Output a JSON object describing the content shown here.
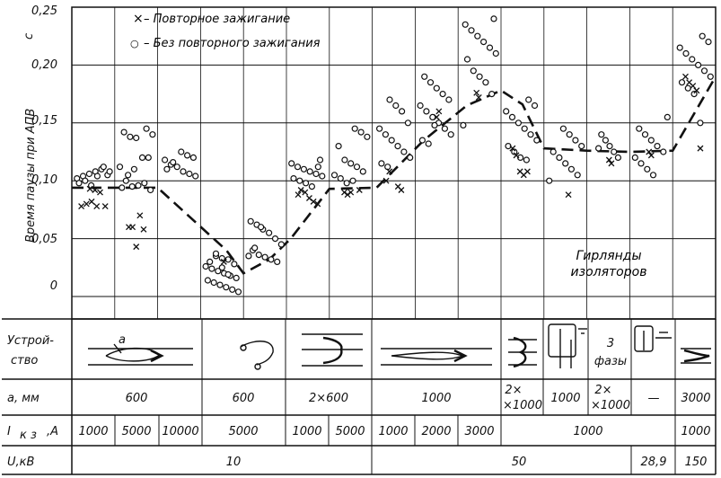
{
  "chart_data": {
    "type": "scatter",
    "ylabel": "Время паузы при АПВ",
    "yunit": "с",
    "ylim": [
      0,
      0.25
    ],
    "yticks": [
      "0",
      "0,05",
      "0,10",
      "0,15",
      "0,20",
      "0,25"
    ],
    "grid": true,
    "legend": [
      {
        "symbol": "×",
        "label": "– Повторное зажигание"
      },
      {
        "symbol": "○",
        "label": "– Без повторного зажигания"
      }
    ],
    "annotation": [
      "Гирлянды",
      "изоляторов"
    ],
    "columns": [
      {
        "id": 1,
        "relight": [
          0.093,
          0.092,
          0.09,
          0.078,
          0.078,
          0.08,
          0.082,
          0.078
        ],
        "no_relight": [
          0.102,
          0.104,
          0.106,
          0.108,
          0.11,
          0.105,
          0.098,
          0.1,
          0.096,
          0.104,
          0.112,
          0.108
        ]
      },
      {
        "id": 2,
        "relight": [
          0.06,
          0.06,
          0.043,
          0.07,
          0.058
        ],
        "no_relight": [
          0.145,
          0.14,
          0.142,
          0.138,
          0.137,
          0.12,
          0.12,
          0.112,
          0.1,
          0.095,
          0.096,
          0.098,
          0.092,
          0.094,
          0.105,
          0.11
        ]
      },
      {
        "id": 3,
        "relight": [],
        "no_relight": [
          0.125,
          0.122,
          0.12,
          0.118,
          0.114,
          0.112,
          0.108,
          0.106,
          0.104,
          0.11,
          0.116
        ]
      },
      {
        "id": 4,
        "relight": [
          0.03
        ],
        "no_relight": [
          0.035,
          0.033,
          0.032,
          0.028,
          0.026,
          0.024,
          0.022,
          0.02,
          0.018,
          0.016,
          0.014,
          0.012,
          0.01,
          0.008,
          0.006,
          0.004,
          0.03,
          0.037,
          0.025,
          0.019
        ]
      },
      {
        "id": 5,
        "relight": [],
        "no_relight": [
          0.065,
          0.062,
          0.058,
          0.055,
          0.05,
          0.045,
          0.04,
          0.036,
          0.034,
          0.032,
          0.03,
          0.035,
          0.042,
          0.06
        ]
      },
      {
        "id": 6,
        "relight": [
          0.092,
          0.09,
          0.085,
          0.082,
          0.08,
          0.088
        ],
        "no_relight": [
          0.118,
          0.115,
          0.112,
          0.11,
          0.108,
          0.106,
          0.104,
          0.102,
          0.1,
          0.098,
          0.095,
          0.112
        ]
      },
      {
        "id": 7,
        "relight": [
          0.092,
          0.09,
          0.088,
          0.09
        ],
        "no_relight": [
          0.145,
          0.142,
          0.138,
          0.13,
          0.118,
          0.115,
          0.112,
          0.108,
          0.105,
          0.102,
          0.098,
          0.1
        ]
      },
      {
        "id": 8,
        "relight": [
          0.095,
          0.092,
          0.1,
          0.108
        ],
        "no_relight": [
          0.17,
          0.165,
          0.16,
          0.15,
          0.145,
          0.14,
          0.135,
          0.13,
          0.125,
          0.12,
          0.115,
          0.112
        ]
      },
      {
        "id": 9,
        "relight": [
          0.155,
          0.16
        ],
        "no_relight": [
          0.19,
          0.185,
          0.18,
          0.175,
          0.17,
          0.165,
          0.16,
          0.155,
          0.15,
          0.145,
          0.14,
          0.135,
          0.132,
          0.148
        ]
      },
      {
        "id": 10,
        "relight": [
          0.176,
          0.172
        ],
        "no_relight": [
          0.24,
          0.235,
          0.23,
          0.225,
          0.22,
          0.215,
          0.21,
          0.205,
          0.195,
          0.19,
          0.185,
          0.175,
          0.148
        ]
      },
      {
        "id": 11,
        "relight": [
          0.128,
          0.122,
          0.108,
          0.105,
          0.108
        ],
        "no_relight": [
          0.17,
          0.165,
          0.16,
          0.155,
          0.15,
          0.145,
          0.14,
          0.135,
          0.13,
          0.125,
          0.12,
          0.118
        ]
      },
      {
        "id": 12,
        "relight": [
          0.088
        ],
        "no_relight": [
          0.145,
          0.14,
          0.135,
          0.13,
          0.125,
          0.12,
          0.115,
          0.11,
          0.105,
          0.1
        ]
      },
      {
        "id": 13,
        "relight": [
          0.118,
          0.115
        ],
        "no_relight": [
          0.14,
          0.135,
          0.13,
          0.125,
          0.12,
          0.128
        ]
      },
      {
        "id": 14,
        "relight": [
          0.125,
          0.122
        ],
        "no_relight": [
          0.155,
          0.145,
          0.14,
          0.135,
          0.13,
          0.125,
          0.12,
          0.115,
          0.11,
          0.105
        ]
      },
      {
        "id": 15,
        "relight": [
          0.19,
          0.185,
          0.182,
          0.178,
          0.128
        ],
        "no_relight": [
          0.225,
          0.22,
          0.215,
          0.21,
          0.205,
          0.2,
          0.195,
          0.19,
          0.185,
          0.18,
          0.175,
          0.15
        ]
      }
    ],
    "trend_points": [
      {
        "col": 0.0,
        "y": 0.094
      },
      {
        "col": 2.0,
        "y": 0.094
      },
      {
        "col": 3.6,
        "y": 0.04
      },
      {
        "col": 4.0,
        "y": 0.02
      },
      {
        "col": 4.6,
        "y": 0.032
      },
      {
        "col": 5.1,
        "y": 0.05
      },
      {
        "col": 6.0,
        "y": 0.093
      },
      {
        "col": 7.1,
        "y": 0.094
      },
      {
        "col": 8.2,
        "y": 0.135
      },
      {
        "col": 9.2,
        "y": 0.165
      },
      {
        "col": 10.0,
        "y": 0.178
      },
      {
        "col": 10.5,
        "y": 0.166
      },
      {
        "col": 11.0,
        "y": 0.128
      },
      {
        "col": 12.0,
        "y": 0.126
      },
      {
        "col": 13.0,
        "y": 0.125
      },
      {
        "col": 14.0,
        "y": 0.126
      },
      {
        "col": 15.0,
        "y": 0.19
      }
    ]
  },
  "table": {
    "row_labels": {
      "device": [
        "Устрой-",
        "ство"
      ],
      "a": "а, мм",
      "ik": "I",
      "ik_sub": "к з",
      "ik_unit": ",А",
      "u": "U,кВ"
    },
    "device_letter": "а",
    "device_phases": [
      "3",
      "фазы"
    ],
    "a_values": [
      "600",
      "600",
      "2×600",
      "1000",
      "2×",
      "×1000",
      "1000",
      "2×",
      "×1000",
      "—",
      "3000"
    ],
    "ik_values": [
      "1000",
      "5000",
      "10000",
      "5000",
      "1000",
      "5000",
      "1000",
      "2000",
      "3000",
      "1000",
      "1000"
    ],
    "u_values": [
      "10",
      "50",
      "28,9",
      "150"
    ]
  }
}
